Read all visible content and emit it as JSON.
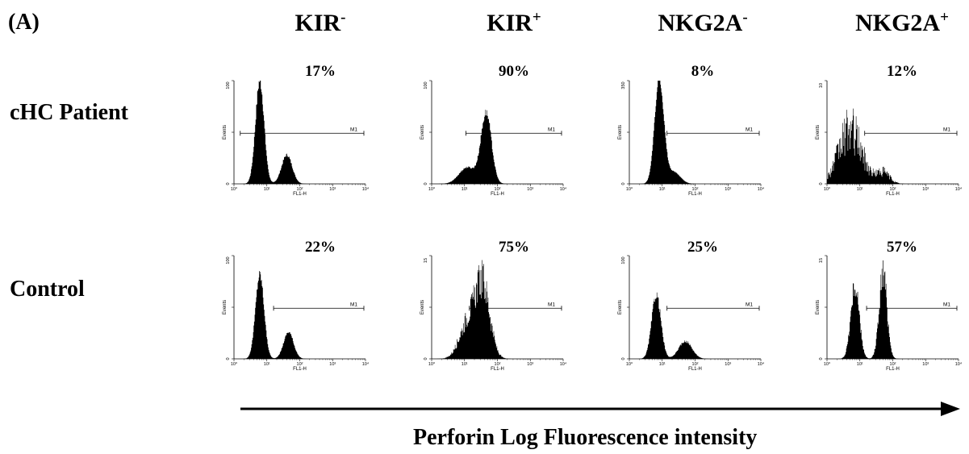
{
  "panel_label": "(A)",
  "row_labels": [
    "cHC Patient",
    "Control"
  ],
  "columns": [
    {
      "base": "KIR",
      "sup": "-"
    },
    {
      "base": "KIR",
      "sup": "+"
    },
    {
      "base": "NKG2A",
      "sup": "-"
    },
    {
      "base": "NKG2A",
      "sup": "+"
    }
  ],
  "arrow_caption": "Perforin Log Fluorescence intensity",
  "chart_data": [
    {
      "type": "area",
      "row": "cHC Patient",
      "column": "KIR-",
      "percent_label": "17%",
      "ylabel": "Events",
      "xlabel": "FL1-H",
      "y_max": 100,
      "ylim": [
        0,
        100
      ],
      "x_scale": "log",
      "xlim": [
        1,
        10000
      ],
      "x_ticks": [
        "10⁰",
        "10¹",
        "10²",
        "10³",
        "10⁴"
      ],
      "gate": {
        "label": "M1",
        "start": 1.55,
        "end": 10000
      },
      "peaks": [
        {
          "center": 6,
          "height": 100,
          "width": 0.13
        },
        {
          "center": 40,
          "height": 28,
          "width": 0.16
        }
      ],
      "noise": 0.12
    },
    {
      "type": "area",
      "row": "cHC Patient",
      "column": "KIR+",
      "percent_label": "90%",
      "ylabel": "Events",
      "xlabel": "FL1-H",
      "y_max": 100,
      "ylim": [
        0,
        100
      ],
      "x_scale": "log",
      "xlim": [
        1,
        10000
      ],
      "x_ticks": [
        "10⁰",
        "10¹",
        "10²",
        "10³",
        "10⁴"
      ],
      "gate": {
        "label": "M1",
        "start": 11,
        "end": 10000
      },
      "peaks": [
        {
          "center": 45,
          "height": 68,
          "width": 0.16
        },
        {
          "center": 12,
          "height": 16,
          "width": 0.25
        }
      ],
      "noise": 0.12
    },
    {
      "type": "area",
      "row": "cHC Patient",
      "column": "NKG2A-",
      "percent_label": "8%",
      "ylabel": "Events",
      "xlabel": "FL1-H",
      "y_max": 350,
      "ylim": [
        0,
        350
      ],
      "x_scale": "log",
      "xlim": [
        1,
        10000
      ],
      "x_ticks": [
        "10⁰",
        "10¹",
        "10²",
        "10³",
        "10⁴"
      ],
      "gate": {
        "label": "M1",
        "start": 14,
        "end": 10000
      },
      "peaks": [
        {
          "center": 8,
          "height": 355,
          "width": 0.14
        },
        {
          "center": 22,
          "height": 40,
          "width": 0.2
        }
      ],
      "noise": 0.08
    },
    {
      "type": "area",
      "row": "cHC Patient",
      "column": "NKG2A+",
      "percent_label": "12%",
      "ylabel": "Events",
      "xlabel": "FL1-H",
      "y_max": 10,
      "ylim": [
        0,
        10
      ],
      "x_scale": "log",
      "xlim": [
        1,
        10000
      ],
      "x_ticks": [
        "10⁰",
        "10¹",
        "10²",
        "10³",
        "10⁴"
      ],
      "gate": {
        "label": "M1",
        "start": 14,
        "end": 10000
      },
      "peaks": [
        {
          "center": 5,
          "height": 5.2,
          "width": 0.35
        },
        {
          "center": 50,
          "height": 1.1,
          "width": 0.2
        }
      ],
      "noise": 0.9
    },
    {
      "type": "area",
      "row": "Control",
      "column": "KIR-",
      "percent_label": "22%",
      "ylabel": "Events",
      "xlabel": "FL1-H",
      "y_max": 100,
      "ylim": [
        0,
        100
      ],
      "x_scale": "log",
      "xlim": [
        1,
        10000
      ],
      "x_ticks": [
        "10⁰",
        "10¹",
        "10²",
        "10³",
        "10⁴"
      ],
      "gate": {
        "label": "M1",
        "start": 16,
        "end": 10000
      },
      "peaks": [
        {
          "center": 6,
          "height": 82,
          "width": 0.13
        },
        {
          "center": 45,
          "height": 26,
          "width": 0.15
        }
      ],
      "noise": 0.12
    },
    {
      "type": "area",
      "row": "Control",
      "column": "KIR+",
      "percent_label": "75%",
      "ylabel": "Events",
      "xlabel": "FL1-H",
      "y_max": 15,
      "ylim": [
        0,
        15
      ],
      "x_scale": "log",
      "xlim": [
        1,
        10000
      ],
      "x_ticks": [
        "10⁰",
        "10¹",
        "10²",
        "10³",
        "10⁴"
      ],
      "gate": {
        "label": "M1",
        "start": 14,
        "end": 10000
      },
      "peaks": [
        {
          "center": 35,
          "height": 10.5,
          "width": 0.22
        },
        {
          "center": 12,
          "height": 5,
          "width": 0.25
        }
      ],
      "noise": 0.5
    },
    {
      "type": "area",
      "row": "Control",
      "column": "NKG2A-",
      "percent_label": "25%",
      "ylabel": "Events",
      "xlabel": "FL1-H",
      "y_max": 100,
      "ylim": [
        0,
        100
      ],
      "x_scale": "log",
      "xlim": [
        1,
        10000
      ],
      "x_ticks": [
        "10⁰",
        "10¹",
        "10²",
        "10³",
        "10⁴"
      ],
      "gate": {
        "label": "M1",
        "start": 14,
        "end": 10000
      },
      "peaks": [
        {
          "center": 6.5,
          "height": 62,
          "width": 0.14
        },
        {
          "center": 50,
          "height": 17,
          "width": 0.2
        }
      ],
      "noise": 0.15
    },
    {
      "type": "area",
      "row": "Control",
      "column": "NKG2A+",
      "percent_label": "57%",
      "ylabel": "Events",
      "xlabel": "FL1-H",
      "y_max": 15,
      "ylim": [
        0,
        15
      ],
      "x_scale": "log",
      "xlim": [
        1,
        10000
      ],
      "x_ticks": [
        "10⁰",
        "10¹",
        "10²",
        "10³",
        "10⁴"
      ],
      "gate": {
        "label": "M1",
        "start": 16,
        "end": 10000
      },
      "peaks": [
        {
          "center": 7,
          "height": 10.5,
          "width": 0.13
        },
        {
          "center": 50,
          "height": 12.5,
          "width": 0.12
        }
      ],
      "noise": 0.35
    }
  ]
}
